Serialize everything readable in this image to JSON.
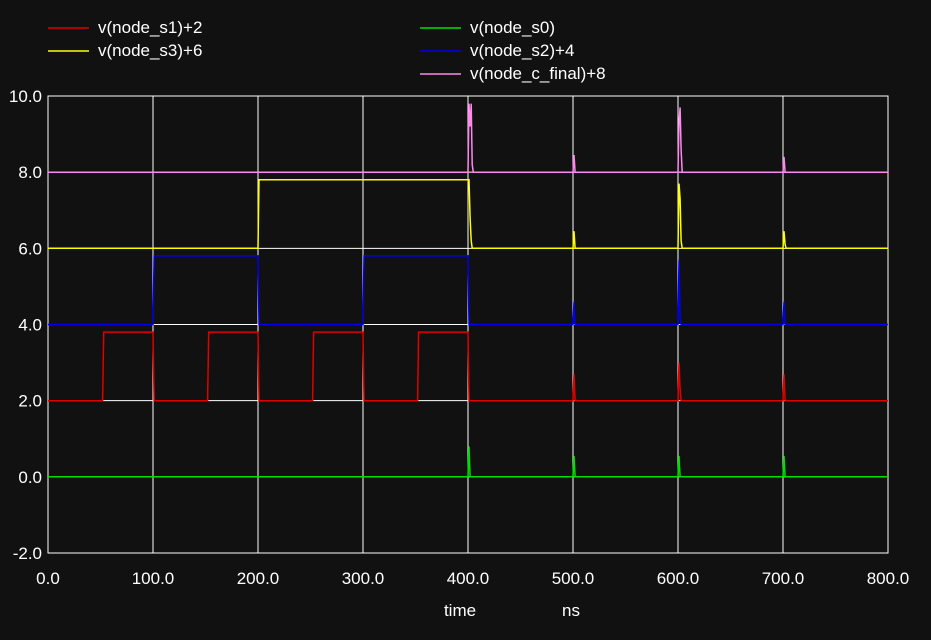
{
  "chart_data": {
    "type": "line",
    "xlabel": "time",
    "xunit": "ns",
    "xlim": [
      0,
      800
    ],
    "ylim": [
      -2,
      10
    ],
    "xticks": [
      "0.0",
      "100.0",
      "200.0",
      "300.0",
      "400.0",
      "500.0",
      "600.0",
      "700.0",
      "800.0"
    ],
    "yticks": [
      "-2.0",
      "0.0",
      "2.0",
      "4.0",
      "6.0",
      "8.0",
      "10.0"
    ],
    "grid": true,
    "background": "#111111",
    "grid_color": "#ffffff",
    "legend_placement": "top",
    "series": [
      {
        "name": "v(node_s1)+2",
        "color": "#e00000",
        "points": [
          [
            0,
            2
          ],
          [
            52,
            2
          ],
          [
            53,
            3.8
          ],
          [
            100,
            3.8
          ],
          [
            101,
            2
          ],
          [
            152,
            2
          ],
          [
            153,
            3.8
          ],
          [
            200,
            3.8
          ],
          [
            201,
            2
          ],
          [
            252,
            2
          ],
          [
            253,
            3.8
          ],
          [
            300,
            3.8
          ],
          [
            301,
            2
          ],
          [
            352,
            2
          ],
          [
            353,
            3.8
          ],
          [
            400,
            3.8
          ],
          [
            401,
            2
          ],
          [
            500,
            2
          ],
          [
            501,
            2.7
          ],
          [
            502,
            2
          ],
          [
            600,
            2
          ],
          [
            601,
            3.0
          ],
          [
            602,
            2.3
          ],
          [
            603,
            2
          ],
          [
            700,
            2
          ],
          [
            701,
            2.7
          ],
          [
            702,
            2
          ],
          [
            800,
            2
          ]
        ]
      },
      {
        "name": "v(node_s3)+6",
        "color": "#ffff00",
        "points": [
          [
            0,
            6
          ],
          [
            200,
            6
          ],
          [
            201,
            7.8
          ],
          [
            400,
            7.8
          ],
          [
            401,
            7.8
          ],
          [
            402,
            6.8
          ],
          [
            403,
            6.2
          ],
          [
            404,
            6
          ],
          [
            500,
            6
          ],
          [
            501,
            6.45
          ],
          [
            502,
            6
          ],
          [
            600,
            6
          ],
          [
            601,
            7.7
          ],
          [
            602,
            7.3
          ],
          [
            603,
            6.2
          ],
          [
            604,
            6
          ],
          [
            700,
            6
          ],
          [
            701,
            6.45
          ],
          [
            702,
            6.1
          ],
          [
            703,
            6
          ],
          [
            800,
            6
          ]
        ]
      },
      {
        "name": "v(node_s0)",
        "color": "#00e000",
        "points": [
          [
            0,
            0
          ],
          [
            400,
            0
          ],
          [
            401,
            0.8
          ],
          [
            402,
            0
          ],
          [
            500,
            0
          ],
          [
            501,
            0.55
          ],
          [
            502,
            0
          ],
          [
            600,
            0
          ],
          [
            601,
            0.55
          ],
          [
            602,
            0
          ],
          [
            700,
            0
          ],
          [
            701,
            0.55
          ],
          [
            702,
            0
          ],
          [
            800,
            0
          ]
        ]
      },
      {
        "name": "v(node_s2)+4",
        "color": "#0000ee",
        "points": [
          [
            0,
            4
          ],
          [
            100,
            4
          ],
          [
            101,
            5.8
          ],
          [
            200,
            5.8
          ],
          [
            201,
            4
          ],
          [
            300,
            4
          ],
          [
            301,
            5.8
          ],
          [
            400,
            5.8
          ],
          [
            401,
            4
          ],
          [
            500,
            4
          ],
          [
            501,
            4.6
          ],
          [
            502,
            4
          ],
          [
            600,
            4
          ],
          [
            601,
            5.7
          ],
          [
            602,
            4.2
          ],
          [
            603,
            4
          ],
          [
            700,
            4
          ],
          [
            701,
            4.6
          ],
          [
            702,
            4
          ],
          [
            800,
            4
          ]
        ]
      },
      {
        "name": "v(node_c_final)+8",
        "color": "#ff88ee",
        "points": [
          [
            0,
            8
          ],
          [
            400,
            8
          ],
          [
            401,
            9.8
          ],
          [
            402,
            9.2
          ],
          [
            403,
            9.8
          ],
          [
            404,
            8.2
          ],
          [
            405,
            8
          ],
          [
            500,
            8
          ],
          [
            501,
            8.45
          ],
          [
            502,
            8
          ],
          [
            600,
            8
          ],
          [
            601,
            9.3
          ],
          [
            602,
            9.7
          ],
          [
            603,
            8.6
          ],
          [
            604,
            8
          ],
          [
            700,
            8
          ],
          [
            701,
            8.4
          ],
          [
            702,
            8
          ],
          [
            800,
            8
          ]
        ]
      }
    ]
  }
}
